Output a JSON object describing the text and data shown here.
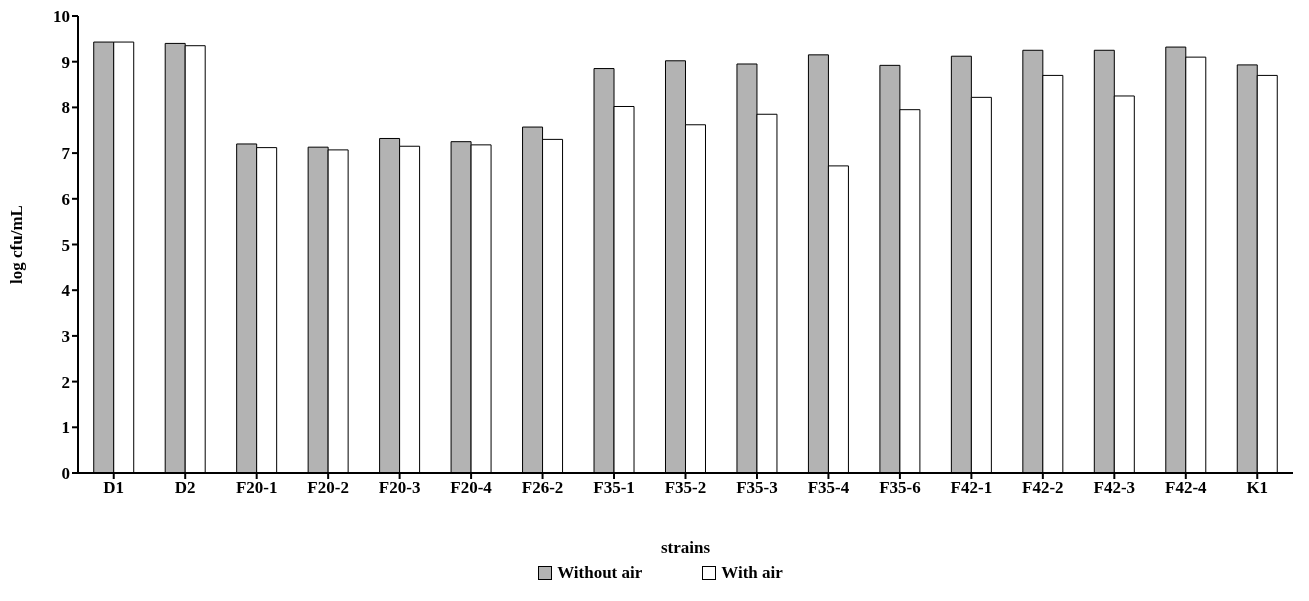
{
  "chart_data": {
    "type": "bar",
    "xlabel": "strains",
    "ylabel": "log cfu/mL",
    "categories": [
      "D1",
      "D2",
      "F20-1",
      "F20-2",
      "F20-3",
      "F20-4",
      "F26-2",
      "F35-1",
      "F35-2",
      "F35-3",
      "F35-4",
      "F35-6",
      "F42-1",
      "F42-2",
      "F42-3",
      "F42-4",
      "K1"
    ],
    "series": [
      {
        "name": "Without air",
        "color": "#b3b3b3",
        "values": [
          9.43,
          9.4,
          7.2,
          7.13,
          7.32,
          7.25,
          7.57,
          8.85,
          9.02,
          8.95,
          9.15,
          8.92,
          9.12,
          9.25,
          9.25,
          9.32,
          8.93
        ]
      },
      {
        "name": "With air",
        "color": "#ffffff",
        "values": [
          9.43,
          9.35,
          7.12,
          7.07,
          7.15,
          7.18,
          7.3,
          8.02,
          7.62,
          7.85,
          6.72,
          7.95,
          8.22,
          8.7,
          8.25,
          9.1,
          8.7
        ]
      }
    ],
    "ylim": [
      0,
      10
    ],
    "yticks": [
      0,
      1,
      2,
      3,
      4,
      5,
      6,
      7,
      8,
      9,
      10
    ],
    "grid": false,
    "legend": "bottom"
  }
}
